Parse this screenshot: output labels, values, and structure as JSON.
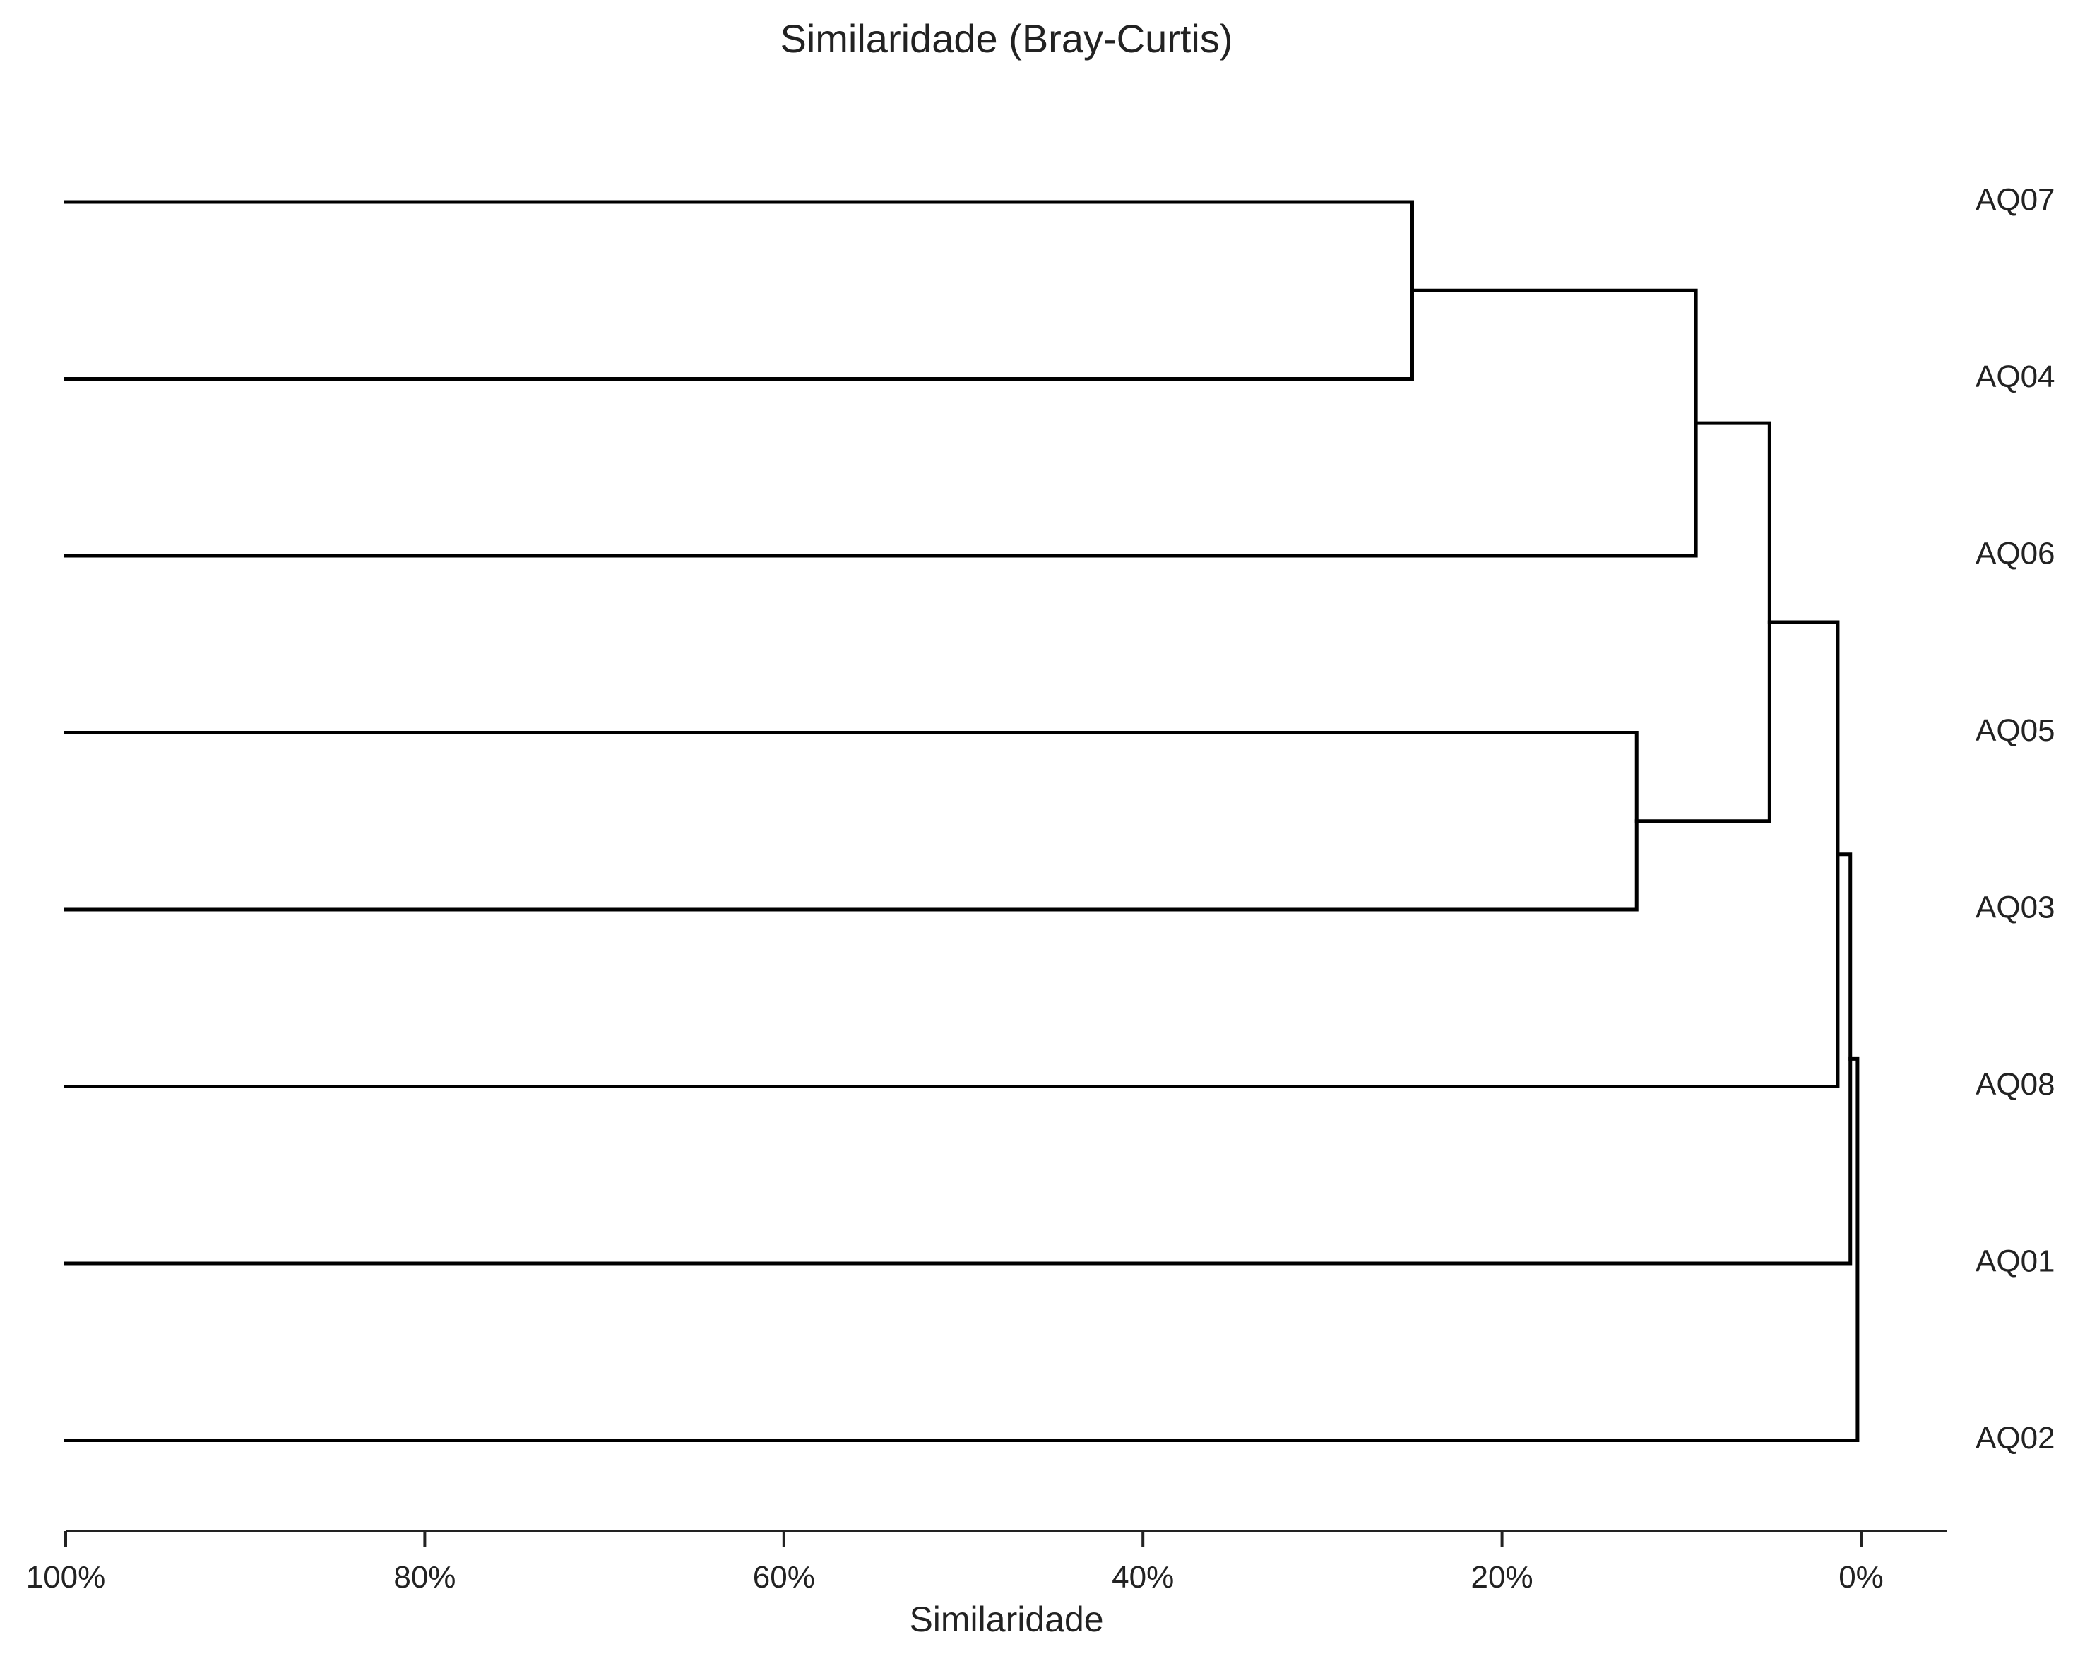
{
  "chart_data": {
    "type": "dendrogram",
    "orientation": "horizontal",
    "title": "Similaridade (Bray-Curtis)",
    "xlabel": "Similaridade",
    "ylabel": "",
    "xlim": [
      100,
      -4.8
    ],
    "x_ticks": [
      100,
      80,
      60,
      40,
      20,
      0
    ],
    "x_tick_labels": [
      "100%",
      "80%",
      "60%",
      "40%",
      "20%",
      "0%"
    ],
    "grid": false,
    "leaves": [
      "AQ07",
      "AQ04",
      "AQ06",
      "AQ05",
      "AQ03",
      "AQ08",
      "AQ01",
      "AQ02"
    ],
    "merges": [
      {
        "left": "AQ07",
        "right": "AQ04",
        "similarity": 25.0
      },
      {
        "left": "AQ07+AQ04",
        "right": "AQ06",
        "similarity": 9.2
      },
      {
        "left": "AQ05",
        "right": "AQ03",
        "similarity": 12.5
      },
      {
        "left": "AQ07+AQ04+AQ06",
        "right": "AQ05+AQ03",
        "similarity": 5.1
      },
      {
        "left": "AQ07+AQ04+AQ06+AQ05+AQ03",
        "right": "AQ08",
        "similarity": 1.3
      },
      {
        "left": "AQ07+AQ04+AQ06+AQ05+AQ03+AQ08",
        "right": "AQ01",
        "similarity": 0.6
      },
      {
        "left": "AQ07+AQ04+AQ06+AQ05+AQ03+AQ08+AQ01",
        "right": "AQ02",
        "similarity": 0.2
      }
    ],
    "line_color": "#000000"
  }
}
